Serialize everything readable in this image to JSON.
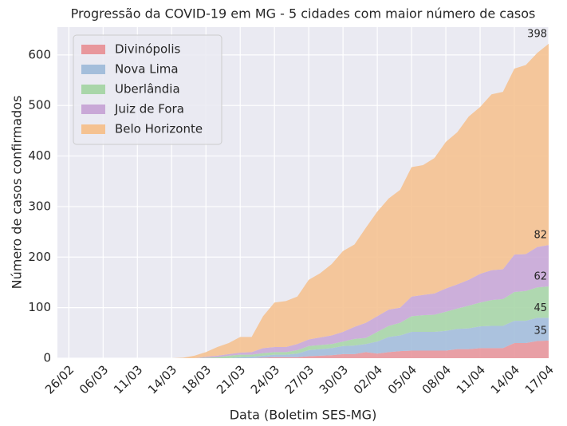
{
  "chart_data": {
    "type": "stacked_area",
    "title": "Progressão da COVID-19 em MG - 5 cidades com maior número de casos",
    "xlabel": "Data (Boletim SES-MG)",
    "ylabel": "Número de casos confirmados",
    "categories": [
      "26/02",
      null,
      null,
      "06/03",
      null,
      null,
      "11/03",
      null,
      null,
      "14/03",
      null,
      null,
      "18/03",
      null,
      null,
      "21/03",
      null,
      null,
      "24/03",
      null,
      null,
      "27/03",
      null,
      null,
      "30/03",
      null,
      null,
      "02/04",
      null,
      null,
      "05/04",
      null,
      null,
      "08/04",
      null,
      null,
      "11/04",
      null,
      null,
      "14/04",
      null,
      null,
      "17/04"
    ],
    "series": [
      {
        "name": "Divinópolis",
        "color": "#e8979c",
        "values": [
          0,
          0,
          0,
          0,
          0,
          0,
          0,
          0,
          0,
          0,
          0,
          0,
          0,
          0,
          0,
          0,
          0,
          1,
          2,
          2,
          2,
          4,
          5,
          6,
          8,
          8,
          12,
          9,
          12,
          14,
          15,
          15,
          15,
          15,
          18,
          18,
          20,
          20,
          20,
          30,
          30,
          34,
          35
        ]
      },
      {
        "name": "Nova Lima",
        "color": "#a4bedb",
        "values": [
          0,
          0,
          0,
          0,
          0,
          0,
          0,
          0,
          0,
          0,
          0,
          0,
          0,
          0,
          0,
          2,
          3,
          4,
          5,
          5,
          7,
          12,
          13,
          14,
          16,
          17,
          16,
          24,
          30,
          31,
          37,
          37,
          37,
          39,
          40,
          41,
          43,
          44,
          44,
          44,
          44,
          46,
          45
        ]
      },
      {
        "name": "Uberlândia",
        "color": "#a9d6a9",
        "values": [
          0,
          0,
          0,
          0,
          0,
          0,
          0,
          0,
          0,
          0,
          0,
          0,
          1,
          2,
          5,
          5,
          4,
          5,
          5,
          5,
          7,
          8,
          8,
          8,
          9,
          13,
          12,
          19,
          22,
          25,
          31,
          33,
          34,
          38,
          40,
          45,
          47,
          51,
          53,
          57,
          59,
          60,
          62
        ]
      },
      {
        "name": "Juiz de Fora",
        "color": "#c9a8d7",
        "values": [
          0,
          0,
          0,
          0,
          0,
          0,
          0,
          0,
          0,
          0,
          0,
          0,
          2,
          3,
          3,
          4,
          5,
          10,
          10,
          10,
          12,
          13,
          15,
          17,
          19,
          24,
          30,
          31,
          32,
          30,
          39,
          40,
          42,
          46,
          48,
          51,
          57,
          59,
          59,
          74,
          73,
          80,
          82
        ]
      },
      {
        "name": "Belo Horizonte",
        "color": "#f5c291",
        "values": [
          0,
          0,
          0,
          0,
          0,
          0,
          0,
          0,
          0,
          0,
          1,
          5,
          9,
          17,
          22,
          31,
          30,
          63,
          88,
          91,
          94,
          118,
          127,
          141,
          160,
          163,
          188,
          207,
          220,
          233,
          256,
          257,
          268,
          290,
          301,
          323,
          330,
          348,
          351,
          368,
          374,
          384,
          398
        ]
      }
    ],
    "ylim": [
      0,
      655
    ],
    "yticks": [
      0,
      100,
      200,
      300,
      400,
      500,
      600
    ],
    "grid": true,
    "legend": "upper left"
  }
}
